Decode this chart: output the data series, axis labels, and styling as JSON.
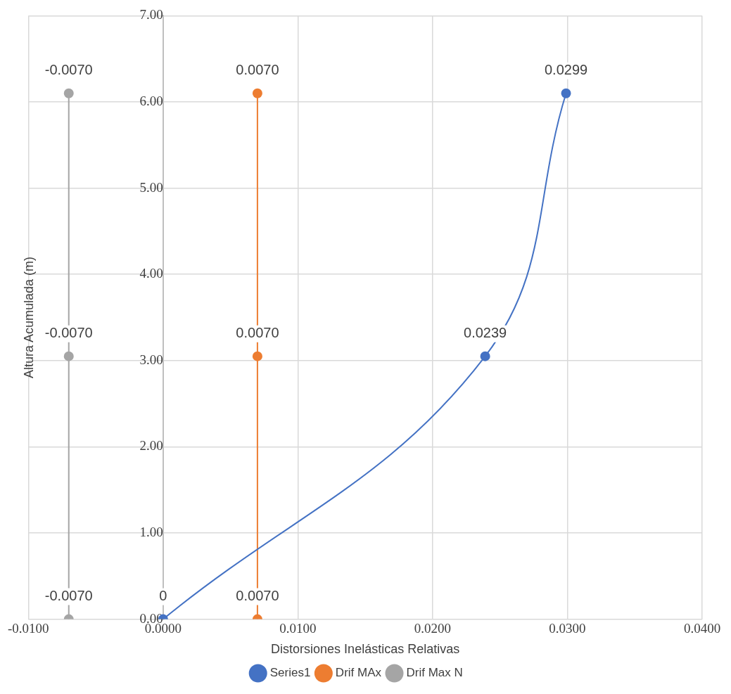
{
  "chart_data": {
    "type": "line",
    "xlabel": "Distorsiones Inelásticas Relativas",
    "ylabel": "Altura Acumulada (m)",
    "xlim": [
      -0.01,
      0.04
    ],
    "xticks": [
      {
        "value": -0.01,
        "label": "-0.0100"
      },
      {
        "value": 0,
        "label": "0.0000"
      },
      {
        "value": 0.01,
        "label": "0.0100"
      },
      {
        "value": 0.02,
        "label": "0.0200"
      },
      {
        "value": 0.03,
        "label": "0.0300"
      },
      {
        "value": 0.04,
        "label": "0.0400"
      }
    ],
    "ylim": [
      0,
      7
    ],
    "yticks": [
      {
        "value": 0,
        "label": "0.00"
      },
      {
        "value": 1,
        "label": "1.00"
      },
      {
        "value": 2,
        "label": "2.00"
      },
      {
        "value": 3,
        "label": "3.00"
      },
      {
        "value": 4,
        "label": "4.00"
      },
      {
        "value": 5,
        "label": "5.00"
      },
      {
        "value": 6,
        "label": "6.00"
      },
      {
        "value": 7,
        "label": "7.00"
      }
    ],
    "grid": true,
    "legend": "bottom",
    "marker": "circle",
    "series": [
      {
        "name": "Series1",
        "color": "#4472c4",
        "x": [
          0,
          0.0239,
          0.0299
        ],
        "values": [
          0,
          3.05,
          6.1
        ]
      },
      {
        "name": "Drif MAx",
        "color": "#ed7d31",
        "x": [
          0.007,
          0.007,
          0.007
        ],
        "values": [
          0,
          3.05,
          6.1
        ]
      },
      {
        "name": "Drif Max N",
        "color": "#a5a5a5",
        "x": [
          -0.007,
          -0.007,
          -0.007
        ],
        "values": [
          0,
          3.05,
          6.1
        ]
      }
    ],
    "annotations": [
      {
        "text": "0",
        "x": 0,
        "y": 0
      },
      {
        "text": "0.0239",
        "x": 0.0239,
        "y": 3.05
      },
      {
        "text": "0.0299",
        "x": 0.0299,
        "y": 6.1
      },
      {
        "text": "0.0070",
        "x": 0.007,
        "y": 0
      },
      {
        "text": "0.0070",
        "x": 0.007,
        "y": 3.05
      },
      {
        "text": "0.0070",
        "x": 0.007,
        "y": 6.1
      },
      {
        "text": "-0.0070",
        "x": -0.007,
        "y": 0
      },
      {
        "text": "-0.0070",
        "x": -0.007,
        "y": 3.05
      },
      {
        "text": "-0.0070",
        "x": -0.007,
        "y": 6.1
      }
    ]
  }
}
